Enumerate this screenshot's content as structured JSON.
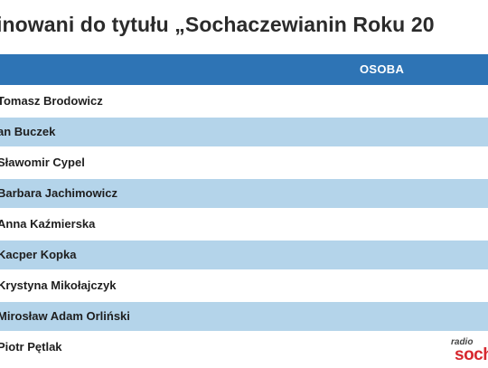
{
  "title": "inowani do tytułu „Sochaczewianin Roku 20",
  "table": {
    "header": "OSOBA",
    "rows": [
      "Tomasz Brodowicz",
      "an Buczek",
      "Sławomir Cypel",
      "Barbara Jachimowicz",
      "Anna Kaźmierska",
      "Kacper Kopka",
      "Krystyna Mikołajczyk",
      "Mirosław Adam Orliński",
      "Piotr Pętlak"
    ]
  },
  "logo": {
    "top": "radio",
    "main": "soch"
  },
  "colors": {
    "header_bg": "#2e74b5",
    "alt_row_bg": "#b4d4ea",
    "logo_red": "#d7282f"
  }
}
